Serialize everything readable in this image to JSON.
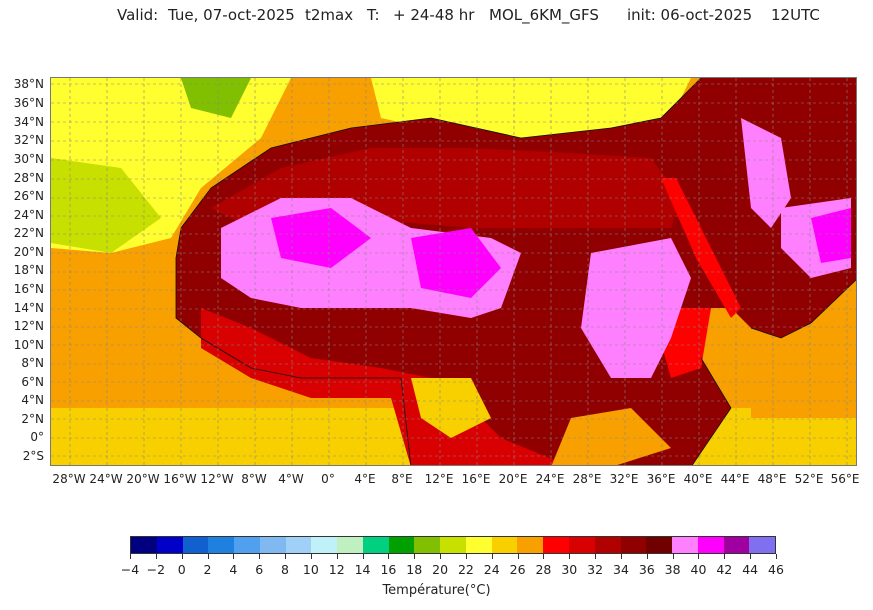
{
  "header": {
    "valid_label": "Valid:",
    "valid_date": "Tue, 07-oct-2025",
    "variable": "t2max",
    "t_label": "T:",
    "lead_time": "+ 24-48 hr",
    "model": "MOL_6KM_GFS",
    "init": "init: 06-oct-2025",
    "cycle": "12UTC"
  },
  "map": {
    "lat_labels": [
      "38°N",
      "36°N",
      "34°N",
      "32°N",
      "30°N",
      "28°N",
      "26°N",
      "24°N",
      "22°N",
      "20°N",
      "18°N",
      "16°N",
      "14°N",
      "12°N",
      "10°N",
      "8°N",
      "6°N",
      "4°N",
      "2°N",
      "0°",
      "2°S"
    ],
    "lon_labels": [
      "28°W",
      "24°W",
      "20°W",
      "16°W",
      "12°W",
      "8°W",
      "4°W",
      "0°",
      "4°E",
      "8°E",
      "12°E",
      "16°E",
      "20°E",
      "24°E",
      "28°E",
      "32°E",
      "36°E",
      "40°E",
      "44°E",
      "48°E",
      "52°E",
      "56°E"
    ],
    "grid": "dashed"
  },
  "colorbar": {
    "title": "Température(°C)",
    "ticks": [
      "−4",
      "−2",
      "0",
      "2",
      "4",
      "6",
      "8",
      "10",
      "12",
      "14",
      "16",
      "18",
      "20",
      "22",
      "24",
      "26",
      "28",
      "30",
      "32",
      "34",
      "36",
      "38",
      "40",
      "42",
      "44",
      "46"
    ],
    "colors": [
      "#000080",
      "#0000c8",
      "#1060d0",
      "#2080e0",
      "#50a0f0",
      "#80b8f0",
      "#a0d0f8",
      "#c0f0f8",
      "#c0f0c0",
      "#00d080",
      "#00a000",
      "#80c000",
      "#c8e000",
      "#ffff30",
      "#f8d000",
      "#f8a000",
      "#ff0000",
      "#d80000",
      "#b00000",
      "#900000",
      "#700000",
      "#ff80ff",
      "#ff00ff",
      "#a000a0",
      "#8070f0"
    ]
  }
}
